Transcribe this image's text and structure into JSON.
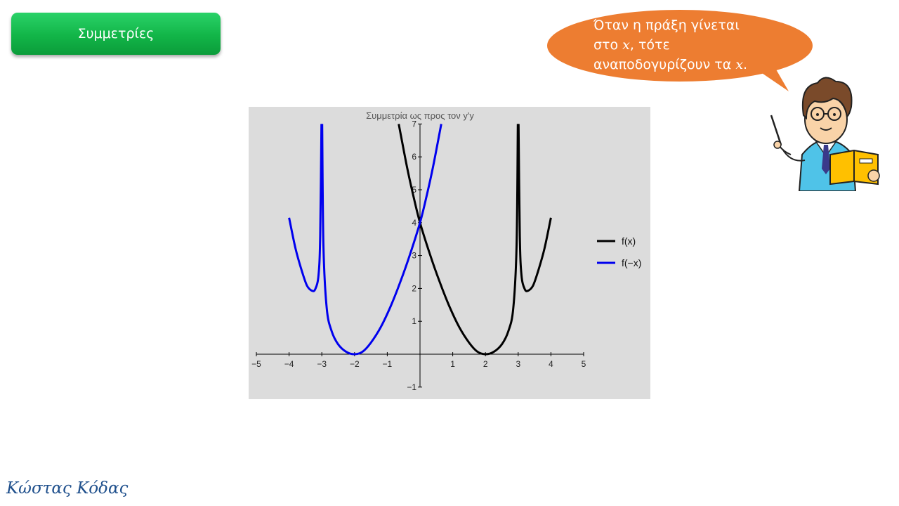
{
  "header": {
    "title": "Συμμετρίες"
  },
  "callout": {
    "line1": "Όταν η πράξη γίνεται",
    "line2_pre": "στο ",
    "var": "x",
    "line2_post": ", τότε",
    "line3_pre": "αναποδογυρίζουν τα ",
    "line3_post": ".",
    "color": "#ed7d31"
  },
  "footer": {
    "author": "Κώστας Κόδας"
  },
  "chart_data": {
    "type": "line",
    "title": "Συμμετρία ως προς τον y'y",
    "xlim": [
      -5,
      5
    ],
    "ylim": [
      -1,
      7
    ],
    "x_ticks": [
      "−5",
      "−4",
      "−3",
      "−2",
      "−1",
      "1",
      "2",
      "3",
      "4",
      "5"
    ],
    "y_ticks": [
      "−1",
      "1",
      "2",
      "3",
      "4",
      "5",
      "6",
      "7"
    ],
    "legend_position": "right",
    "series": [
      {
        "name": "f(x)",
        "color": "#000000",
        "segments": [
          [
            [
              -0.65,
              7
            ],
            [
              -0.4,
              5.7
            ],
            [
              -0.2,
              4.8
            ],
            [
              0,
              4
            ],
            [
              0.3,
              3.05
            ],
            [
              0.6,
              2.2
            ],
            [
              0.9,
              1.45
            ],
            [
              1.2,
              0.82
            ],
            [
              1.5,
              0.35
            ],
            [
              1.75,
              0.08
            ],
            [
              2,
              0
            ],
            [
              2.25,
              0.07
            ],
            [
              2.5,
              0.3
            ],
            [
              2.7,
              0.7
            ],
            [
              2.85,
              1.4
            ],
            [
              2.95,
              3.3
            ],
            [
              2.99,
              7
            ]
          ],
          [
            [
              3.01,
              7
            ],
            [
              3.05,
              3.6
            ],
            [
              3.1,
              2.4
            ],
            [
              3.2,
              1.98
            ],
            [
              3.3,
              1.93
            ],
            [
              3.45,
              2.08
            ],
            [
              3.6,
              2.5
            ],
            [
              3.8,
              3.2
            ],
            [
              4,
              4.15
            ]
          ]
        ]
      },
      {
        "name": "f(−x)",
        "color": "#0000ee",
        "segments": [
          [
            [
              0.65,
              7
            ],
            [
              0.4,
              5.7
            ],
            [
              0.2,
              4.8
            ],
            [
              0,
              4
            ],
            [
              -0.3,
              3.05
            ],
            [
              -0.6,
              2.2
            ],
            [
              -0.9,
              1.45
            ],
            [
              -1.2,
              0.82
            ],
            [
              -1.5,
              0.35
            ],
            [
              -1.75,
              0.08
            ],
            [
              -2,
              0
            ],
            [
              -2.25,
              0.07
            ],
            [
              -2.5,
              0.3
            ],
            [
              -2.7,
              0.7
            ],
            [
              -2.85,
              1.4
            ],
            [
              -2.95,
              3.3
            ],
            [
              -2.99,
              7
            ]
          ],
          [
            [
              -3.01,
              7
            ],
            [
              -3.05,
              3.6
            ],
            [
              -3.1,
              2.4
            ],
            [
              -3.2,
              1.98
            ],
            [
              -3.3,
              1.93
            ],
            [
              -3.45,
              2.08
            ],
            [
              -3.6,
              2.5
            ],
            [
              -3.8,
              3.2
            ],
            [
              -4,
              4.15
            ]
          ]
        ]
      }
    ]
  }
}
